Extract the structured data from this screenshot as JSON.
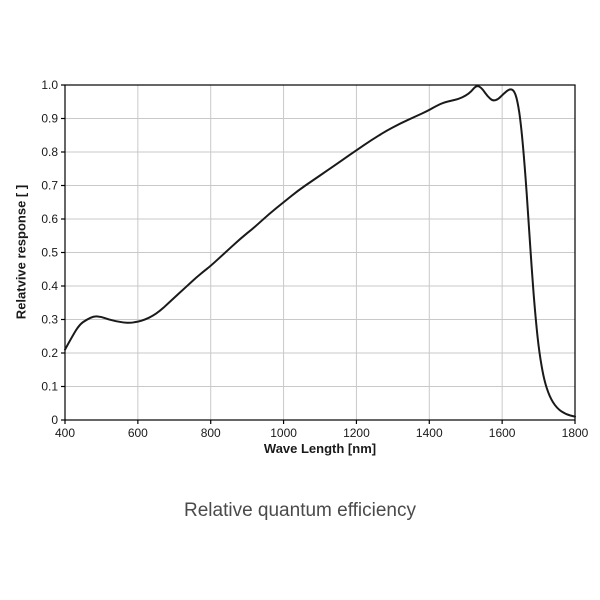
{
  "caption": "Relative quantum efficiency",
  "chart_data": {
    "type": "line",
    "title": "Relative quantum efficiency",
    "xlabel": "Wave Length [nm]",
    "ylabel": "Relatvive response [ ]",
    "xlim": [
      400,
      1800
    ],
    "ylim": [
      0,
      1.0
    ],
    "x_ticks": [
      400,
      600,
      800,
      1000,
      1200,
      1400,
      1600,
      1800
    ],
    "y_ticks": [
      0,
      0.1,
      0.2,
      0.3,
      0.4,
      0.5,
      0.6,
      0.7,
      0.8,
      0.9,
      1.0
    ],
    "grid": true,
    "line_color": "#1a1a1a",
    "grid_color": "#c9c9c9",
    "series": [
      {
        "name": "relative response",
        "x": [
          400,
          420,
          440,
          460,
          480,
          500,
          520,
          540,
          560,
          580,
          600,
          620,
          640,
          660,
          680,
          700,
          720,
          740,
          760,
          780,
          800,
          840,
          880,
          920,
          960,
          1000,
          1040,
          1080,
          1120,
          1160,
          1200,
          1240,
          1280,
          1320,
          1360,
          1400,
          1420,
          1440,
          1460,
          1480,
          1500,
          1515,
          1530,
          1545,
          1560,
          1575,
          1590,
          1605,
          1620,
          1632,
          1642,
          1652,
          1662,
          1672,
          1682,
          1692,
          1702,
          1715,
          1730,
          1750,
          1775,
          1800
        ],
        "y": [
          0.21,
          0.25,
          0.285,
          0.3,
          0.31,
          0.308,
          0.3,
          0.295,
          0.291,
          0.29,
          0.293,
          0.3,
          0.31,
          0.325,
          0.345,
          0.365,
          0.385,
          0.405,
          0.425,
          0.443,
          0.46,
          0.5,
          0.54,
          0.575,
          0.615,
          0.65,
          0.685,
          0.715,
          0.745,
          0.775,
          0.805,
          0.835,
          0.862,
          0.885,
          0.905,
          0.925,
          0.938,
          0.948,
          0.953,
          0.958,
          0.968,
          0.98,
          1.0,
          0.99,
          0.966,
          0.952,
          0.958,
          0.975,
          0.988,
          0.985,
          0.955,
          0.88,
          0.76,
          0.6,
          0.44,
          0.3,
          0.2,
          0.12,
          0.07,
          0.035,
          0.017,
          0.01
        ]
      }
    ]
  }
}
